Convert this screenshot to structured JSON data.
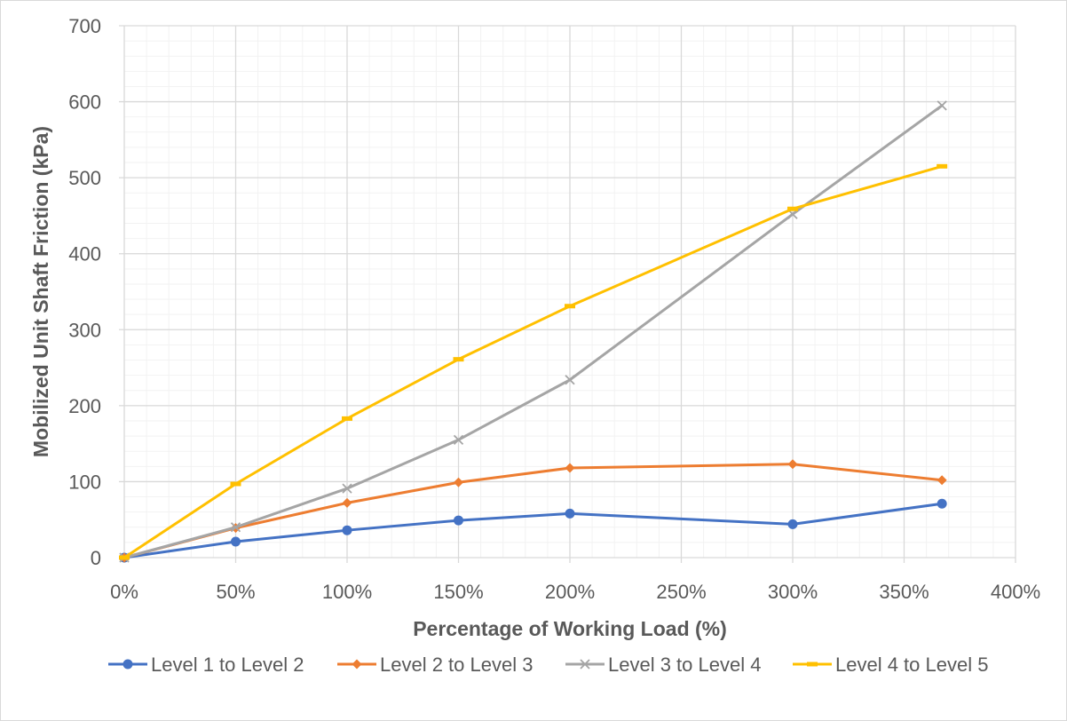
{
  "chart_data": {
    "type": "line",
    "title": "",
    "xlabel": "Percentage of Working Load (%)",
    "ylabel": "Mobilized Unit Shaft Friction (kPa)",
    "xlim": [
      0,
      400
    ],
    "ylim": [
      0,
      700
    ],
    "x_ticks": [
      "0%",
      "50%",
      "100%",
      "150%",
      "200%",
      "250%",
      "300%",
      "350%",
      "400%"
    ],
    "y_ticks": [
      "0",
      "100",
      "200",
      "300",
      "400",
      "500",
      "600",
      "700"
    ],
    "grid": true,
    "legend_position": "bottom",
    "x": [
      0,
      50,
      100,
      150,
      200,
      300,
      367
    ],
    "series": [
      {
        "name": "Level 1 to Level 2",
        "color": "#4472c4",
        "marker": "circle",
        "values": [
          0,
          21,
          36,
          49,
          58,
          44,
          71
        ]
      },
      {
        "name": "Level 2 to Level 3",
        "color": "#ed7d31",
        "marker": "diamond",
        "values": [
          0,
          39,
          72,
          99,
          118,
          123,
          102
        ]
      },
      {
        "name": "Level 3 to Level 4",
        "color": "#a5a5a5",
        "marker": "x",
        "values": [
          0,
          40,
          91,
          155,
          234,
          452,
          595
        ]
      },
      {
        "name": "Level 4 to Level 5",
        "color": "#ffc000",
        "marker": "dash",
        "values": [
          0,
          97,
          183,
          261,
          331,
          459,
          515
        ]
      }
    ]
  }
}
